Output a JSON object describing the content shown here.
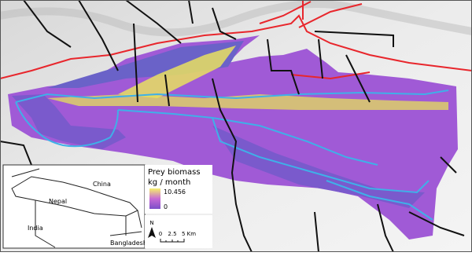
{
  "legend": {
    "title": "Prey biomass",
    "unit": "kg / month",
    "max": 10.456,
    "min": 0
  },
  "inset": {
    "labels": [
      "China",
      "Nepal",
      "India",
      "Bangladesh"
    ]
  },
  "north": "N",
  "scale": {
    "ticks": [
      0,
      2.5,
      "5 Km"
    ]
  }
}
